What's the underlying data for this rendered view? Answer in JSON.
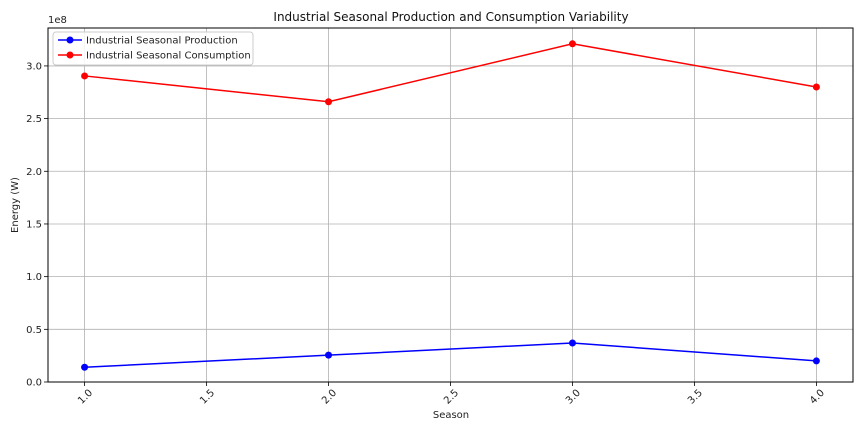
{
  "chart_data": {
    "type": "line",
    "title": "Industrial Seasonal Production and Consumption Variability",
    "xlabel": "Season",
    "ylabel": "Energy (W)",
    "y_multiplier_label": "1e8",
    "x_ticks": [
      "1.0",
      "1.5",
      "2.0",
      "2.5",
      "3.0",
      "3.5",
      "4.0"
    ],
    "y_ticks": [
      "0.0",
      "0.5",
      "1.0",
      "1.5",
      "2.0",
      "2.5",
      "3.0"
    ],
    "xlim": [
      0.85,
      4.15
    ],
    "ylim": [
      0,
      3.36
    ],
    "grid": true,
    "legend_position": "top-left",
    "x": [
      1,
      2,
      3,
      4
    ],
    "series": [
      {
        "name": "Industrial Seasonal Production",
        "color": "#0000ff",
        "values": [
          0.14,
          0.255,
          0.37,
          0.2
        ]
      },
      {
        "name": "Industrial Seasonal Consumption",
        "color": "#ff0000",
        "values": [
          2.905,
          2.66,
          3.21,
          2.8
        ]
      }
    ]
  }
}
